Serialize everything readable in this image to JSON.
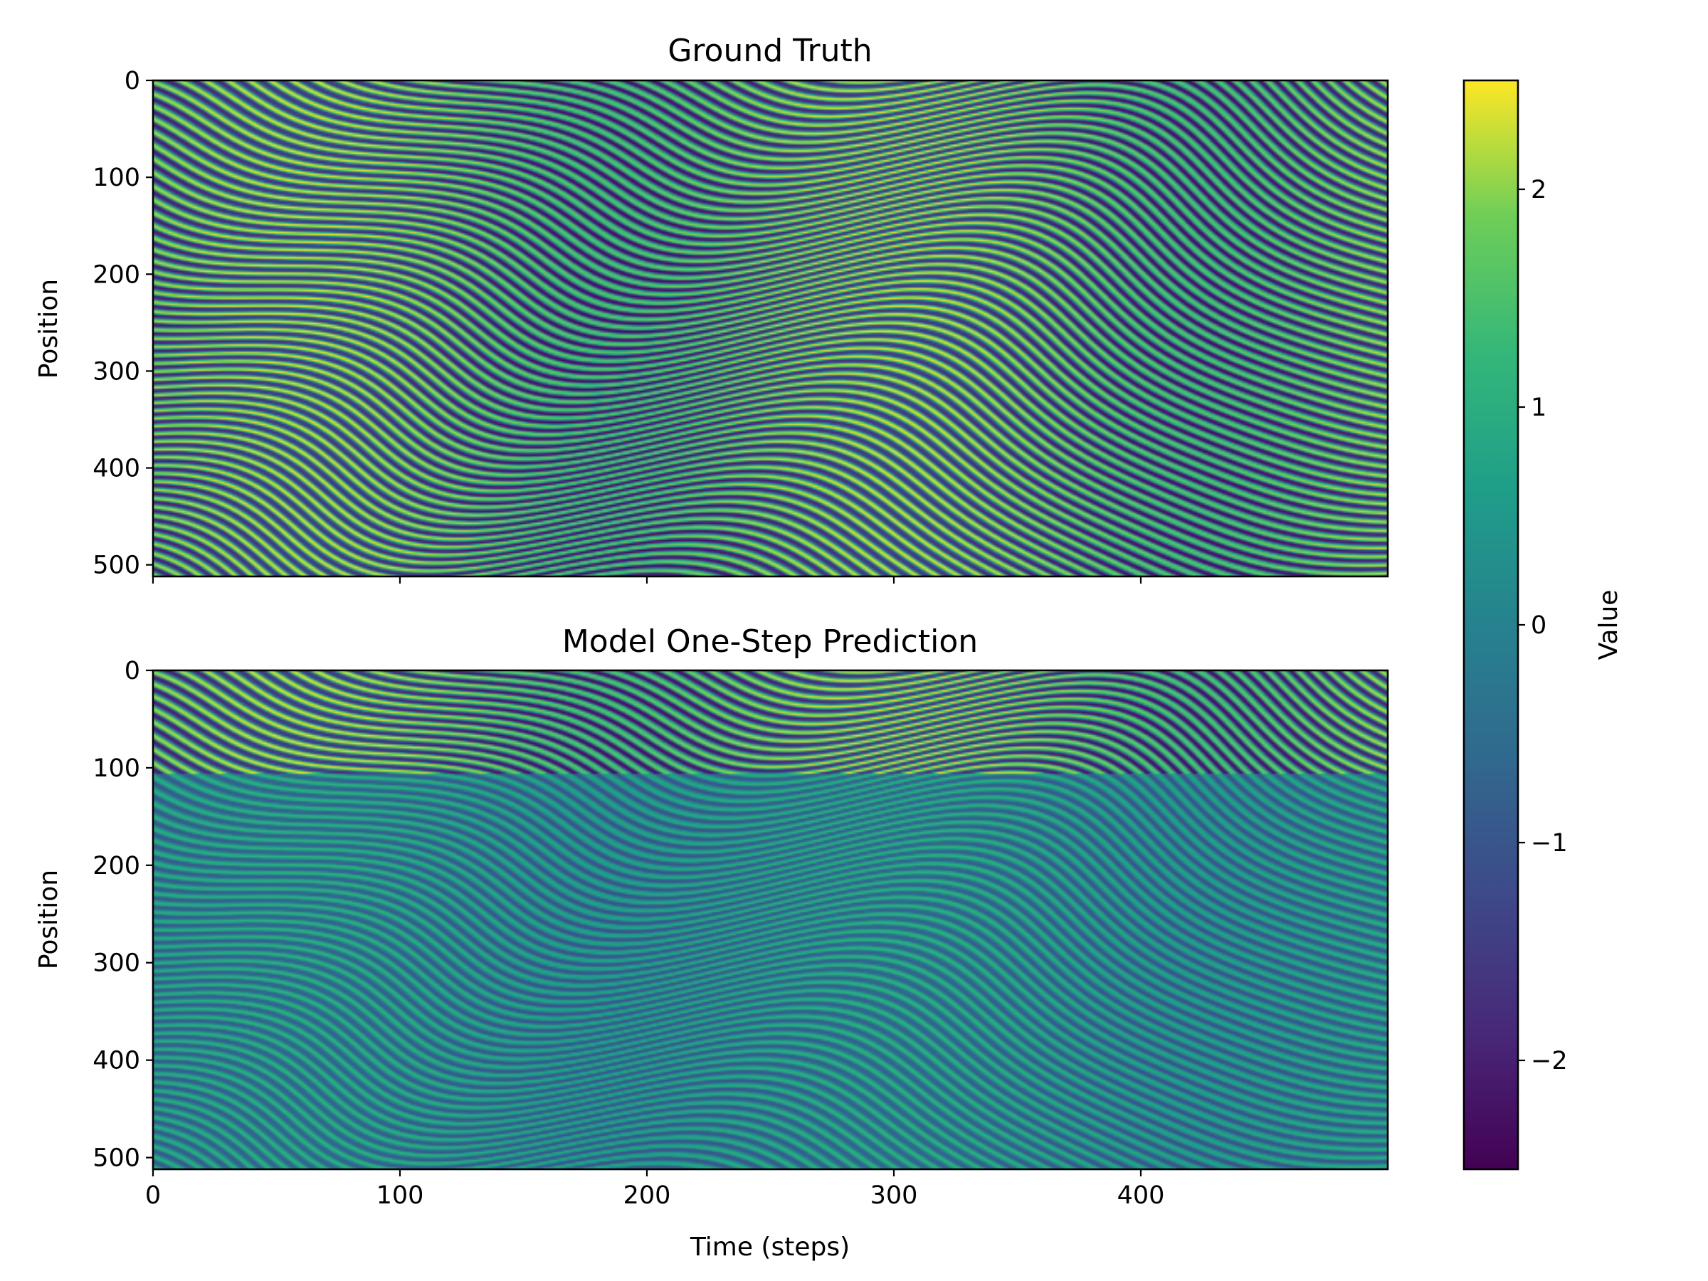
{
  "chart_data": {
    "type": "heatmap",
    "panels": [
      {
        "title": "Ground Truth",
        "ylabel": "Position",
        "xlabel": "",
        "x_ticks": [
          0,
          100,
          200,
          300,
          400
        ],
        "x_tick_labels": [
          "",
          "",
          "",
          "",
          ""
        ],
        "y_ticks": [
          0,
          100,
          200,
          300,
          400,
          500
        ],
        "y_tick_labels": [
          "0",
          "100",
          "200",
          "300",
          "400",
          "500"
        ],
        "xlim": [
          0,
          500
        ],
        "ylim": [
          512,
          0
        ],
        "amplitude_profile": "uniform"
      },
      {
        "title": "Model One-Step Prediction",
        "ylabel": "Position",
        "xlabel": "Time (steps)",
        "x_ticks": [
          0,
          100,
          200,
          300,
          400
        ],
        "x_tick_labels": [
          "0",
          "100",
          "200",
          "300",
          "400"
        ],
        "y_ticks": [
          0,
          100,
          200,
          300,
          400,
          500
        ],
        "y_tick_labels": [
          "0",
          "100",
          "200",
          "300",
          "400",
          "500"
        ],
        "xlim": [
          0,
          500
        ],
        "ylim": [
          512,
          0
        ],
        "amplitude_profile": "sharp for positions 0-100, damped below"
      }
    ],
    "colorbar": {
      "label": "Value",
      "colormap": "viridis",
      "vmin": -2.5,
      "vmax": 2.5,
      "ticks": [
        -2,
        -1,
        0,
        1,
        2
      ],
      "tick_labels": [
        "−2",
        "−1",
        "0",
        "1",
        "2"
      ]
    },
    "colors": {
      "viridis_low": "#440154",
      "viridis_mid": "#21918c",
      "viridis_high": "#fde725"
    }
  }
}
